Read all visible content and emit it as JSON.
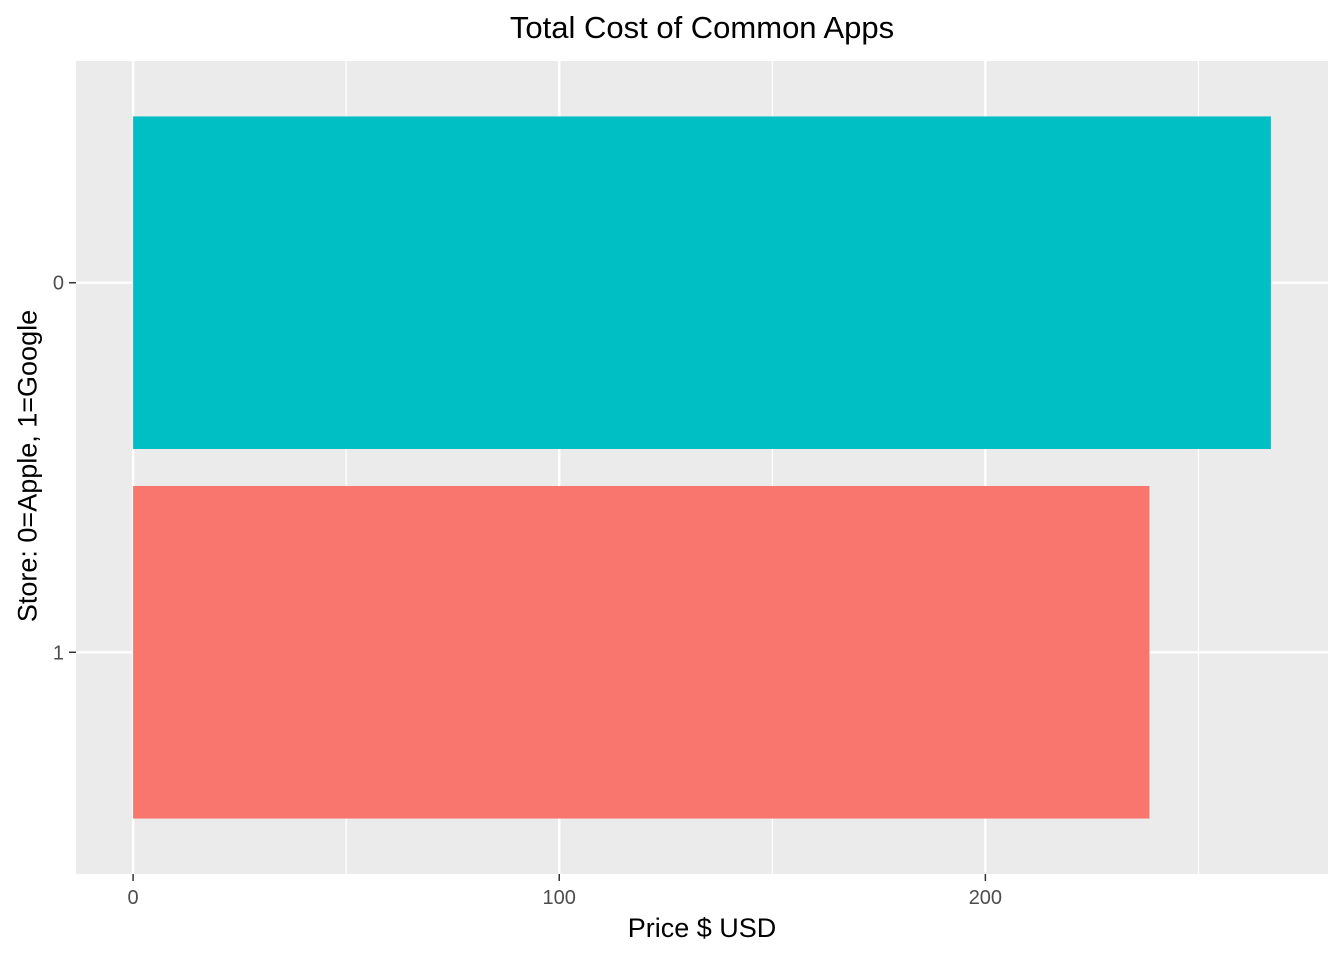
{
  "chart_data": {
    "type": "bar",
    "orientation": "horizontal",
    "title": "Total Cost of Common Apps",
    "xlabel": "Price $ USD",
    "ylabel": "Store: 0=Apple, 1=Google",
    "categories": [
      "0",
      "1"
    ],
    "values": [
      267,
      238.5
    ],
    "colors": [
      "#00BFC4",
      "#F8766D"
    ],
    "xlim": [
      -13.4,
      280.4
    ],
    "x_ticks": [
      0,
      100,
      200
    ],
    "x_tick_labels": [
      "0",
      "100",
      "200"
    ],
    "x_minor_ticks": [
      50,
      150,
      250
    ],
    "grid": true,
    "legend": "none"
  },
  "style": {
    "panel_background": "#EBEBEB",
    "grid_color": "#FFFFFF",
    "tick_color": "#333333"
  }
}
